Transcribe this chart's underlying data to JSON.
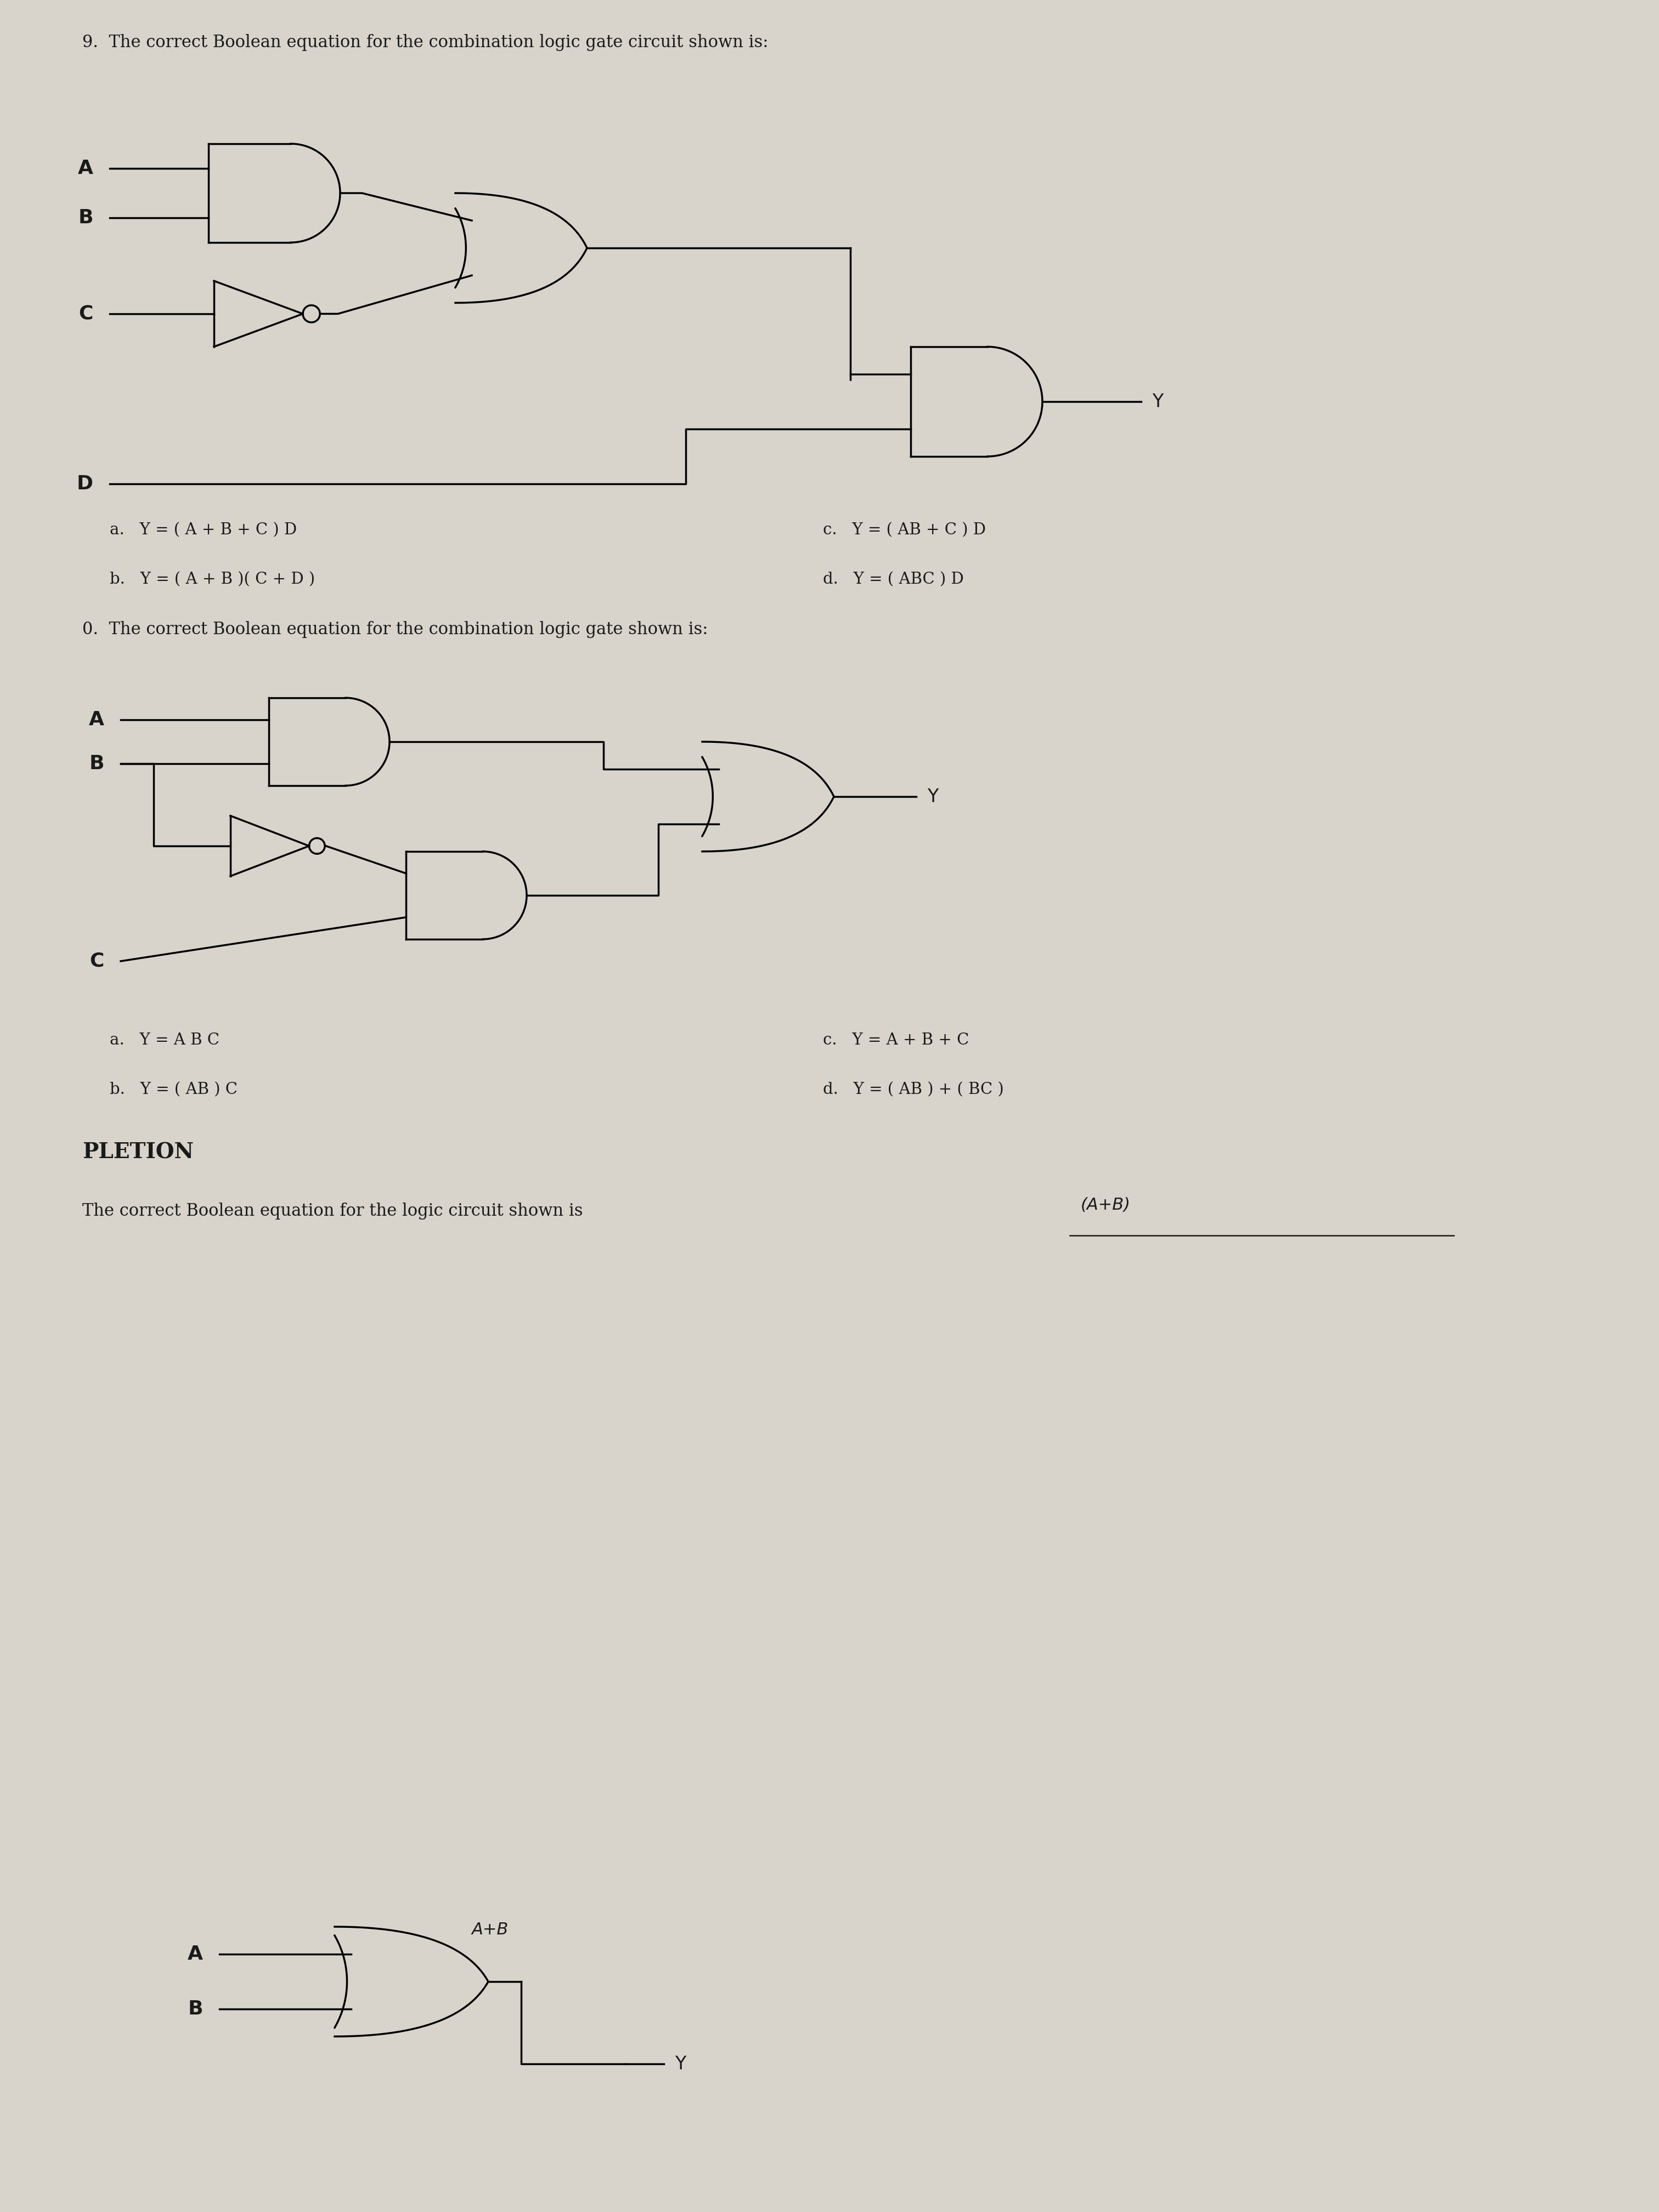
{
  "bg_color": "#d8d4cc",
  "text_color": "#1a1a1a",
  "q9_title": "9.  The correct Boolean equation for the combination logic gate circuit shown is:",
  "q10_title": "0.  The correct Boolean equation for the combination logic gate shown is:",
  "completion_title": "PLETION",
  "completion_text": "The correct Boolean equation for the logic circuit shown is",
  "completion_answer": "(A+B)",
  "q9_answers_left": [
    "a.   Y = ( A + B + C ) D",
    "b.   Y = ( A + B )( C + D )"
  ],
  "q9_answers_right": [
    "c.   Y = ( AB + C ) D",
    "d.   Y = ( ABC ) D"
  ],
  "q10_answers_left": [
    "a.   Y = A B C",
    "b.   Y = ( AB ) C"
  ],
  "q10_answers_right": [
    "c.   Y = A + B + C",
    "d.   Y = ( AB ) + ( BC )"
  ]
}
